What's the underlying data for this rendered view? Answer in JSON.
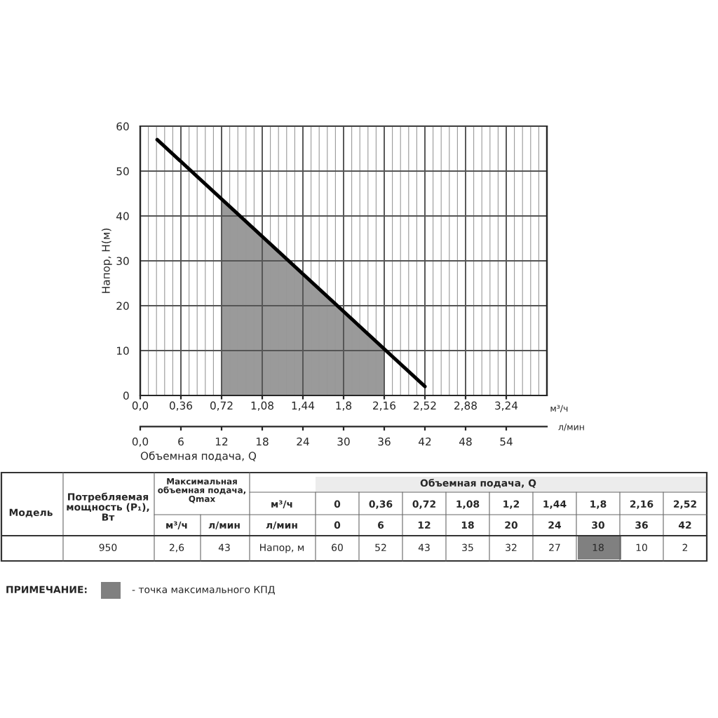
{
  "chart_data": {
    "type": "line",
    "xlabel": "Объемная подача, Q",
    "ylabel": "Напор, H(м)",
    "x2label": "м³/ч",
    "xlim": [
      0,
      60
    ],
    "ylim": [
      0,
      60
    ],
    "xticks": [
      {
        "value": 0,
        "label": "0,0"
      },
      6,
      12,
      18,
      24,
      30,
      36,
      42,
      48,
      54
    ],
    "yticks": [
      0,
      10,
      20,
      30,
      40,
      50,
      60
    ],
    "x2lim": [
      0,
      3.6
    ],
    "x2ticks": [
      {
        "value": 0,
        "label": "0,0"
      },
      {
        "value": 0.36,
        "label": "0,36"
      },
      {
        "value": 0.72,
        "label": "0,72"
      },
      {
        "value": 1.08,
        "label": "1,08"
      },
      {
        "value": 1.44,
        "label": "1,44"
      },
      {
        "value": 1.8,
        "label": "1,8"
      },
      {
        "value": 2.16,
        "label": "2,16"
      },
      {
        "value": 2.52,
        "label": "2,52"
      },
      {
        "value": 2.88,
        "label": "2,88"
      },
      {
        "value": 3.24,
        "label": "3,24"
      }
    ],
    "grid": true,
    "series": [
      {
        "type": "area",
        "color": "#9a9a9a",
        "x": [
          12,
          36
        ],
        "values": [
          43.8,
          10.4
        ]
      },
      {
        "color": "#000000",
        "x": [
          2.5,
          42
        ],
        "values": [
          57,
          2
        ]
      }
    ],
    "annotations": [
      "л/мин",
      "Модель",
      "Потребляемая\nмощность (P₁),\nВт",
      "Максимальная\nобъемная подача,\nQmax",
      "Объемная подача, Q",
      "м³/ч",
      "л/мин",
      "м³/ч",
      "0",
      "0,36",
      "0,72",
      "1,08",
      "1,2",
      "1,44",
      "1,8",
      "2,16",
      "2,52",
      "л/мин",
      "0",
      "6",
      "12",
      "18",
      "20",
      "24",
      "30",
      "36",
      "42",
      "950",
      "2,6",
      "43",
      "Напор, м",
      "60",
      "52",
      "43",
      "35",
      "32",
      "27",
      "18",
      "10",
      "2",
      "ПРИМЕЧАНИЕ:",
      "- точка максимального КПД"
    ]
  }
}
